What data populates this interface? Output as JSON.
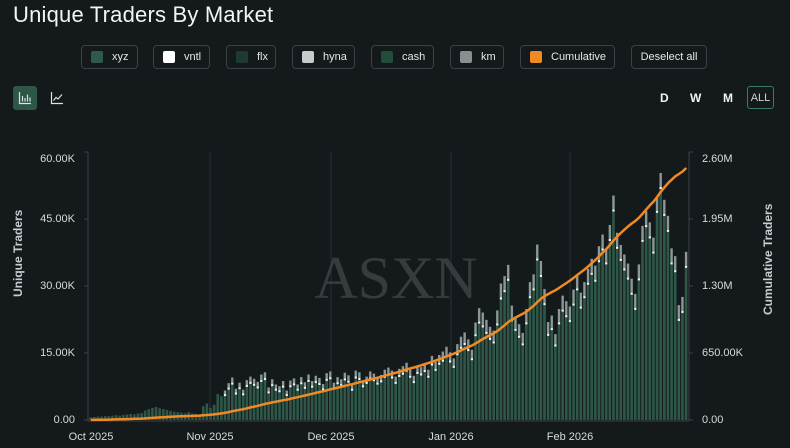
{
  "title": "Unique Traders By Market",
  "legend": [
    {
      "label": "xyz",
      "color": "#2f5a4b"
    },
    {
      "label": "vntl",
      "color": "#ffffff"
    },
    {
      "label": "flx",
      "color": "#1f3a31"
    },
    {
      "label": "hyna",
      "color": "#c8cbcc"
    },
    {
      "label": "cash",
      "color": "#244c3d"
    },
    {
      "label": "km",
      "color": "#8a8e90"
    },
    {
      "label": "Cumulative",
      "color": "#f08a24"
    }
  ],
  "deselect_label": "Deselect all",
  "view_toggle": {
    "bar": "bar-chart",
    "line": "line-chart",
    "active": "bar"
  },
  "timeframes": {
    "d": "D",
    "w": "W",
    "m": "M",
    "all": "ALL",
    "active": "ALL"
  },
  "watermark": "ASXN",
  "chart_data": {
    "type": "bar",
    "title": "Unique Traders By Market",
    "xlabel": "",
    "ylabel": "Unique Traders",
    "y2label": "Cumulative Traders",
    "ylim": [
      0,
      60000
    ],
    "y2lim": [
      0,
      2600000
    ],
    "yticks": [
      "0.00",
      "15.00K",
      "30.00K",
      "45.00K",
      "60.00K"
    ],
    "y2ticks": [
      "0.00",
      "650.00K",
      "1.30M",
      "1.95M",
      "2.60M"
    ],
    "xticks": [
      "Oct 2025",
      "Nov 2025",
      "Dec 2025",
      "Jan 2026",
      "Feb 2026"
    ],
    "stacked": true,
    "grid": "vertical at month boundaries",
    "legend_position": "top",
    "series_names": [
      "xyz",
      "vntl",
      "flx",
      "hyna",
      "cash",
      "km",
      "Cumulative"
    ],
    "monthly_approx_daily_total": [
      {
        "month": "Oct 2025",
        "range": [
          500,
          3500
        ]
      },
      {
        "month": "Nov 2025",
        "range": [
          3000,
          11000
        ]
      },
      {
        "month": "Dec 2025",
        "range": [
          6000,
          12000
        ]
      },
      {
        "month": "Jan 2026",
        "range": [
          11000,
          42000
        ]
      },
      {
        "month": "Feb 2026",
        "range": [
          25000,
          57000
        ]
      }
    ],
    "daily_total": [
      600,
      700,
      800,
      800,
      900,
      900,
      1000,
      1100,
      1000,
      1200,
      1300,
      1400,
      1300,
      1500,
      1600,
      2200,
      2500,
      2800,
      3000,
      2700,
      2500,
      2300,
      2100,
      1900,
      1800,
      1700,
      1600,
      1800,
      1500,
      1400,
      1300,
      3200,
      3800,
      2800,
      3500,
      6000,
      5500,
      6800,
      8500,
      9800,
      7200,
      8600,
      7000,
      9200,
      10000,
      9500,
      8800,
      10500,
      11000,
      7500,
      9400,
      8200,
      7800,
      9000,
      6800,
      9100,
      9600,
      8200,
      9900,
      8700,
      10500,
      9000,
      10200,
      9700,
      8300,
      10800,
      11200,
      8600,
      9900,
      9400,
      10900,
      10300,
      8200,
      11400,
      11000,
      9100,
      10000,
      11200,
      10700,
      9800,
      10400,
      11600,
      12100,
      11400,
      10000,
      11800,
      12400,
      13200,
      11600,
      10200,
      12600,
      12200,
      13100,
      11600,
      14800,
      13400,
      15000,
      15800,
      16900,
      15600,
      14200,
      17500,
      19200,
      20200,
      18600,
      16200,
      22500,
      25800,
      24800,
      23100,
      21500,
      20600,
      25300,
      31500,
      33200,
      35800,
      26400,
      23900,
      22100,
      20100,
      25600,
      31800,
      33600,
      40500,
      36700,
      30200,
      22600,
      24100,
      19800,
      25600,
      28700,
      27400,
      26200,
      30100,
      33600,
      29400,
      31800,
      34900,
      37200,
      35600,
      40100,
      42800,
      39600,
      45000,
      51800,
      43200,
      40400,
      38200,
      36100,
      32600,
      29100,
      35900,
      44800,
      48200,
      45600,
      42100,
      51500,
      57000,
      50800,
      47100,
      39600,
      37800,
      26500,
      28400,
      38800
    ],
    "cumulative_approx": [
      {
        "date": "Oct 2025",
        "value": 0
      },
      {
        "date": "Nov 2025",
        "value": 65000
      },
      {
        "date": "Dec 2025",
        "value": 330000
      },
      {
        "date": "Jan 2026",
        "value": 640000
      },
      {
        "date": "Feb 2026",
        "value": 1300000
      },
      {
        "date": "end",
        "value": 2520000
      }
    ]
  }
}
